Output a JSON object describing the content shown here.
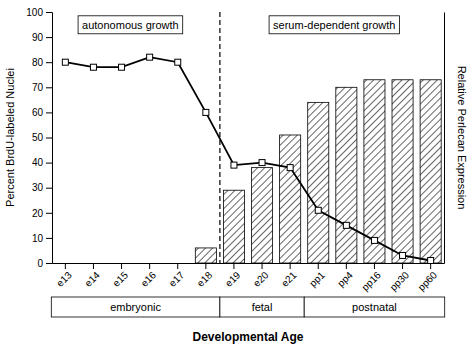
{
  "chart_data": {
    "type": "bar",
    "categories": [
      "e13",
      "e14",
      "e15",
      "e16",
      "e17",
      "e18",
      "e19",
      "e20",
      "e21",
      "pp1",
      "pp4",
      "pp16",
      "pp30",
      "pp60"
    ],
    "series": [
      {
        "type": "bar",
        "color": "#ffffff",
        "values": [
          0,
          0,
          0,
          0,
          0,
          6,
          29,
          38,
          51,
          64,
          70,
          73,
          73,
          73
        ]
      },
      {
        "type": "line",
        "color": "#000000",
        "marker": "square",
        "line_style": "solid",
        "values": [
          80,
          78,
          78,
          82,
          80,
          60,
          39,
          40,
          38,
          21,
          15,
          9,
          3,
          1
        ]
      }
    ],
    "ylabel": "Percent BrdU-labeled Nuclei",
    "y2label": "Relative Perlecan Expression",
    "xlabel": "Developmental Age",
    "ylim": [
      0,
      100
    ],
    "yticks": [
      0,
      10,
      20,
      30,
      40,
      50,
      60,
      70,
      80,
      90,
      100
    ],
    "annotations": [
      "autonomous growth",
      "serum-dependent growth"
    ],
    "groups": [
      {
        "label": "embryonic",
        "from": "e13",
        "to": "e18"
      },
      {
        "label": "fetal",
        "from": "e19",
        "to": "e21"
      },
      {
        "label": "postnatal",
        "from": "pp1",
        "to": "pp60"
      }
    ],
    "grid": false
  }
}
